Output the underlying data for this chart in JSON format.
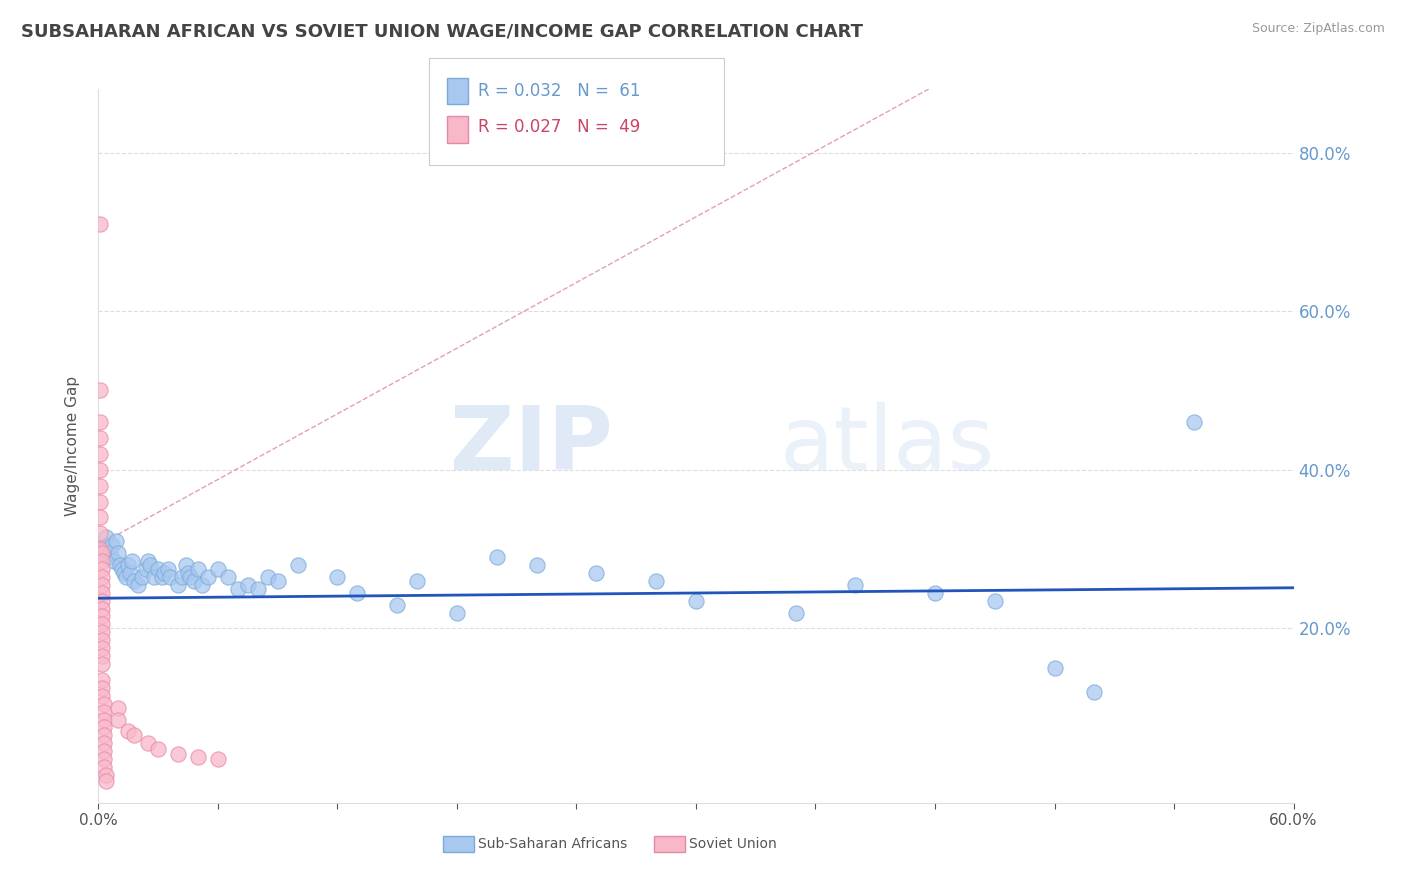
{
  "title": "SUBSAHARAN AFRICAN VS SOVIET UNION WAGE/INCOME GAP CORRELATION CHART",
  "source": "Source: ZipAtlas.com",
  "ylabel": "Wage/Income Gap",
  "legend_blue_label": "Sub-Saharan Africans",
  "legend_pink_label": "Soviet Union",
  "legend_blue_R": "R = 0.032",
  "legend_blue_N": "N =  61",
  "legend_pink_R": "R = 0.027",
  "legend_pink_N": "N =  49",
  "watermark_ZIP": "ZIP",
  "watermark_atlas": "atlas",
  "blue_color": "#a8c8f0",
  "blue_edge_color": "#7aaad8",
  "pink_color": "#f8b8c8",
  "pink_edge_color": "#e888a8",
  "blue_line_color": "#2255bb",
  "pink_dash_color": "#dd8899",
  "title_color": "#444444",
  "axis_label_color": "#555555",
  "tick_color": "#6699cc",
  "grid_color": "#dddddd",
  "background_color": "#ffffff",
  "xmin": 0.0,
  "xmax": 0.6,
  "ymin": -0.02,
  "ymax": 0.88,
  "yticks": [
    0.2,
    0.4,
    0.6,
    0.8
  ],
  "blue_regression_slope": 0.022,
  "blue_regression_intercept": 0.238,
  "pink_regression_slope": 1.38,
  "pink_regression_intercept": 0.305,
  "blue_dots": [
    [
      0.003,
      0.3
    ],
    [
      0.004,
      0.315
    ],
    [
      0.005,
      0.29
    ],
    [
      0.006,
      0.295
    ],
    [
      0.007,
      0.305
    ],
    [
      0.008,
      0.285
    ],
    [
      0.009,
      0.31
    ],
    [
      0.01,
      0.295
    ],
    [
      0.011,
      0.28
    ],
    [
      0.012,
      0.275
    ],
    [
      0.013,
      0.27
    ],
    [
      0.014,
      0.265
    ],
    [
      0.015,
      0.28
    ],
    [
      0.016,
      0.27
    ],
    [
      0.017,
      0.285
    ],
    [
      0.018,
      0.26
    ],
    [
      0.02,
      0.255
    ],
    [
      0.022,
      0.265
    ],
    [
      0.024,
      0.275
    ],
    [
      0.025,
      0.285
    ],
    [
      0.026,
      0.28
    ],
    [
      0.028,
      0.265
    ],
    [
      0.03,
      0.275
    ],
    [
      0.032,
      0.265
    ],
    [
      0.033,
      0.27
    ],
    [
      0.035,
      0.275
    ],
    [
      0.036,
      0.265
    ],
    [
      0.04,
      0.255
    ],
    [
      0.042,
      0.265
    ],
    [
      0.044,
      0.28
    ],
    [
      0.045,
      0.27
    ],
    [
      0.046,
      0.265
    ],
    [
      0.048,
      0.26
    ],
    [
      0.05,
      0.275
    ],
    [
      0.052,
      0.255
    ],
    [
      0.055,
      0.265
    ],
    [
      0.06,
      0.275
    ],
    [
      0.065,
      0.265
    ],
    [
      0.07,
      0.25
    ],
    [
      0.075,
      0.255
    ],
    [
      0.08,
      0.25
    ],
    [
      0.085,
      0.265
    ],
    [
      0.09,
      0.26
    ],
    [
      0.1,
      0.28
    ],
    [
      0.12,
      0.265
    ],
    [
      0.13,
      0.245
    ],
    [
      0.15,
      0.23
    ],
    [
      0.16,
      0.26
    ],
    [
      0.18,
      0.22
    ],
    [
      0.2,
      0.29
    ],
    [
      0.22,
      0.28
    ],
    [
      0.25,
      0.27
    ],
    [
      0.28,
      0.26
    ],
    [
      0.3,
      0.235
    ],
    [
      0.35,
      0.22
    ],
    [
      0.38,
      0.255
    ],
    [
      0.42,
      0.245
    ],
    [
      0.45,
      0.235
    ],
    [
      0.48,
      0.15
    ],
    [
      0.5,
      0.12
    ],
    [
      0.55,
      0.46
    ]
  ],
  "pink_dots": [
    [
      0.001,
      0.71
    ],
    [
      0.001,
      0.5
    ],
    [
      0.001,
      0.46
    ],
    [
      0.001,
      0.44
    ],
    [
      0.001,
      0.42
    ],
    [
      0.001,
      0.4
    ],
    [
      0.001,
      0.38
    ],
    [
      0.001,
      0.36
    ],
    [
      0.001,
      0.34
    ],
    [
      0.001,
      0.32
    ],
    [
      0.001,
      0.3
    ],
    [
      0.002,
      0.295
    ],
    [
      0.002,
      0.285
    ],
    [
      0.002,
      0.275
    ],
    [
      0.002,
      0.265
    ],
    [
      0.002,
      0.255
    ],
    [
      0.002,
      0.245
    ],
    [
      0.002,
      0.235
    ],
    [
      0.002,
      0.225
    ],
    [
      0.002,
      0.215
    ],
    [
      0.002,
      0.205
    ],
    [
      0.002,
      0.195
    ],
    [
      0.002,
      0.185
    ],
    [
      0.002,
      0.175
    ],
    [
      0.002,
      0.165
    ],
    [
      0.002,
      0.155
    ],
    [
      0.002,
      0.135
    ],
    [
      0.002,
      0.125
    ],
    [
      0.002,
      0.115
    ],
    [
      0.003,
      0.105
    ],
    [
      0.003,
      0.095
    ],
    [
      0.003,
      0.085
    ],
    [
      0.003,
      0.075
    ],
    [
      0.003,
      0.065
    ],
    [
      0.003,
      0.055
    ],
    [
      0.003,
      0.045
    ],
    [
      0.003,
      0.035
    ],
    [
      0.003,
      0.025
    ],
    [
      0.004,
      0.015
    ],
    [
      0.004,
      0.007
    ],
    [
      0.01,
      0.1
    ],
    [
      0.01,
      0.085
    ],
    [
      0.015,
      0.07
    ],
    [
      0.018,
      0.065
    ],
    [
      0.025,
      0.055
    ],
    [
      0.03,
      0.048
    ],
    [
      0.04,
      0.042
    ],
    [
      0.05,
      0.038
    ],
    [
      0.06,
      0.035
    ]
  ]
}
